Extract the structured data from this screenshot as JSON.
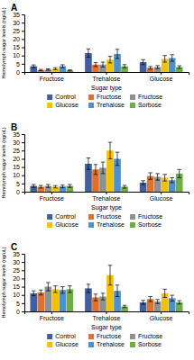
{
  "chart_data": [
    {
      "type": "bar",
      "title": "A",
      "xlabel": "Sugar type",
      "ylabel": "Hemolymph sugar levels (ng/uL)",
      "categories": [
        "Fructose",
        "Trehalose",
        "Glucose"
      ],
      "series": [
        {
          "name": "Control",
          "color": "#3F5F9F",
          "values": [
            3.5,
            11.5,
            6.0
          ],
          "errors": [
            0.8,
            2.5,
            1.5
          ]
        },
        {
          "name": "Fructose",
          "color": "#E07030",
          "values": [
            1.2,
            4.5,
            2.5
          ],
          "errors": [
            0.4,
            1.2,
            0.8
          ]
        },
        {
          "name": "Fructose",
          "color": "#909090",
          "values": [
            1.5,
            4.5,
            3.0
          ],
          "errors": [
            0.4,
            1.5,
            0.9
          ]
        },
        {
          "name": "Glucose",
          "color": "#F5C000",
          "values": [
            2.0,
            7.5,
            8.0
          ],
          "errors": [
            0.6,
            2.0,
            2.0
          ]
        },
        {
          "name": "Trehalose",
          "color": "#5090C8",
          "values": [
            3.5,
            11.0,
            8.5
          ],
          "errors": [
            0.9,
            2.8,
            2.0
          ]
        },
        {
          "name": "Sorbose",
          "color": "#70AD47",
          "values": [
            1.0,
            3.5,
            3.0
          ],
          "errors": [
            0.3,
            1.0,
            0.8
          ]
        }
      ],
      "ylim": [
        0,
        35
      ],
      "yticks": [
        0,
        5,
        10,
        15,
        20,
        25,
        30,
        35
      ],
      "grid": false,
      "legend": "bottom"
    },
    {
      "type": "bar",
      "title": "B",
      "xlabel": "Sugar type",
      "ylabel": "Hemolymph sugar levels (ng/uL)",
      "categories": [
        "Fructose",
        "Trehalose",
        "Glucose"
      ],
      "series": [
        {
          "name": "Control",
          "color": "#3F5F9F",
          "values": [
            3.5,
            17.0,
            5.5
          ],
          "errors": [
            0.9,
            3.5,
            1.2
          ]
        },
        {
          "name": "Fructose",
          "color": "#E07030",
          "values": [
            3.0,
            13.5,
            9.5
          ],
          "errors": [
            0.8,
            3.0,
            2.0
          ]
        },
        {
          "name": "Fructose",
          "color": "#909090",
          "values": [
            3.5,
            14.5,
            9.0
          ],
          "errors": [
            0.9,
            3.5,
            2.0
          ]
        },
        {
          "name": "Glucose",
          "color": "#F5C000",
          "values": [
            3.0,
            25.0,
            8.5
          ],
          "errors": [
            0.7,
            5.0,
            2.0
          ]
        },
        {
          "name": "Trehalose",
          "color": "#5090C8",
          "values": [
            3.2,
            20.0,
            7.0
          ],
          "errors": [
            0.8,
            4.0,
            1.5
          ]
        },
        {
          "name": "Sorbose",
          "color": "#70AD47",
          "values": [
            3.5,
            3.0,
            11.0
          ],
          "errors": [
            0.9,
            0.8,
            2.5
          ]
        }
      ],
      "ylim": [
        0,
        35
      ],
      "yticks": [
        0,
        5,
        10,
        15,
        20,
        25,
        30,
        35
      ],
      "grid": false,
      "legend": "bottom"
    },
    {
      "type": "bar",
      "title": "C",
      "xlabel": "Sugar type",
      "ylabel": "Hemolymph sugar levels (ng/uL)",
      "categories": [
        "Fructose",
        "Trehalose",
        "Glucose"
      ],
      "series": [
        {
          "name": "Control",
          "color": "#3F5F9F",
          "values": [
            11.0,
            14.0,
            5.5
          ],
          "errors": [
            1.5,
            2.5,
            1.2
          ]
        },
        {
          "name": "Fructose",
          "color": "#E07030",
          "values": [
            11.5,
            8.5,
            7.5
          ],
          "errors": [
            1.5,
            2.0,
            1.5
          ]
        },
        {
          "name": "Fructose",
          "color": "#909090",
          "values": [
            15.0,
            9.0,
            6.0
          ],
          "errors": [
            2.5,
            2.0,
            1.2
          ]
        },
        {
          "name": "Glucose",
          "color": "#F5C000",
          "values": [
            13.5,
            22.0,
            11.0
          ],
          "errors": [
            2.0,
            6.0,
            2.5
          ]
        },
        {
          "name": "Trehalose",
          "color": "#5090C8",
          "values": [
            13.0,
            12.5,
            8.0
          ],
          "errors": [
            2.0,
            3.5,
            1.8
          ]
        },
        {
          "name": "Sorbose",
          "color": "#70AD47",
          "values": [
            13.5,
            3.0,
            5.5
          ],
          "errors": [
            2.0,
            0.7,
            1.0
          ]
        }
      ],
      "ylim": [
        0,
        35
      ],
      "yticks": [
        0,
        5,
        10,
        15,
        20,
        25,
        30,
        35
      ],
      "grid": false,
      "legend": "bottom"
    }
  ]
}
